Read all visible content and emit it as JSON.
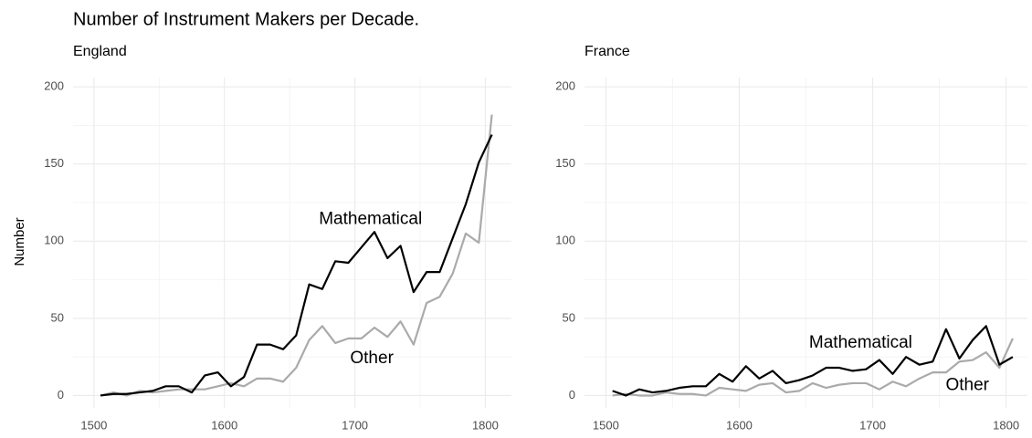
{
  "title": "Number of Instrument Makers per Decade.",
  "chart_data": [
    {
      "type": "line",
      "subtitle": "England",
      "ylabel": "Number",
      "x": [
        1505,
        1515,
        1525,
        1535,
        1545,
        1555,
        1565,
        1575,
        1585,
        1595,
        1605,
        1615,
        1625,
        1635,
        1645,
        1655,
        1665,
        1675,
        1685,
        1695,
        1705,
        1715,
        1725,
        1735,
        1745,
        1755,
        1765,
        1775,
        1785,
        1795,
        1805
      ],
      "series": [
        {
          "name": "Mathematical",
          "color": "#000000",
          "values": [
            0,
            1,
            1,
            2,
            3,
            6,
            6,
            2,
            13,
            15,
            6,
            12,
            33,
            33,
            30,
            39,
            72,
            69,
            87,
            86,
            96,
            106,
            89,
            97,
            67,
            80,
            80,
            102,
            124,
            151,
            169
          ]
        },
        {
          "name": "Other",
          "color": "#aaaaaa",
          "values": [
            0,
            2,
            0,
            3,
            2,
            3,
            4,
            4,
            4,
            6,
            8,
            6,
            11,
            11,
            9,
            18,
            36,
            45,
            34,
            37,
            37,
            44,
            38,
            48,
            33,
            60,
            64,
            79,
            105,
            99,
            182
          ]
        }
      ],
      "xlim": [
        1484,
        1820
      ],
      "xticks": [
        1500,
        1600,
        1700,
        1800
      ],
      "ylim": [
        -8,
        206
      ],
      "yticks": [
        0,
        50,
        100,
        150,
        200
      ],
      "grid": true
    },
    {
      "type": "line",
      "subtitle": "France",
      "x": [
        1505,
        1515,
        1525,
        1535,
        1545,
        1555,
        1565,
        1575,
        1585,
        1595,
        1605,
        1615,
        1625,
        1635,
        1645,
        1655,
        1665,
        1675,
        1685,
        1695,
        1705,
        1715,
        1725,
        1735,
        1745,
        1755,
        1765,
        1775,
        1785,
        1795,
        1805
      ],
      "series": [
        {
          "name": "Mathematical",
          "color": "#000000",
          "values": [
            3,
            0,
            4,
            2,
            3,
            5,
            6,
            6,
            14,
            9,
            19,
            11,
            16,
            8,
            10,
            13,
            18,
            18,
            16,
            17,
            23,
            14,
            25,
            20,
            22,
            43,
            24,
            36,
            45,
            20,
            25
          ]
        },
        {
          "name": "Other",
          "color": "#aaaaaa",
          "values": [
            0,
            1,
            0,
            0,
            2,
            1,
            1,
            0,
            5,
            4,
            3,
            7,
            8,
            2,
            3,
            8,
            5,
            7,
            8,
            8,
            4,
            9,
            6,
            11,
            15,
            15,
            22,
            23,
            28,
            18,
            37
          ]
        }
      ],
      "xlim": [
        1484,
        1816
      ],
      "xticks": [
        1500,
        1600,
        1700,
        1800
      ],
      "ylim": [
        -8,
        206
      ],
      "yticks": [
        0,
        50,
        100,
        150,
        200
      ],
      "grid": true
    }
  ]
}
